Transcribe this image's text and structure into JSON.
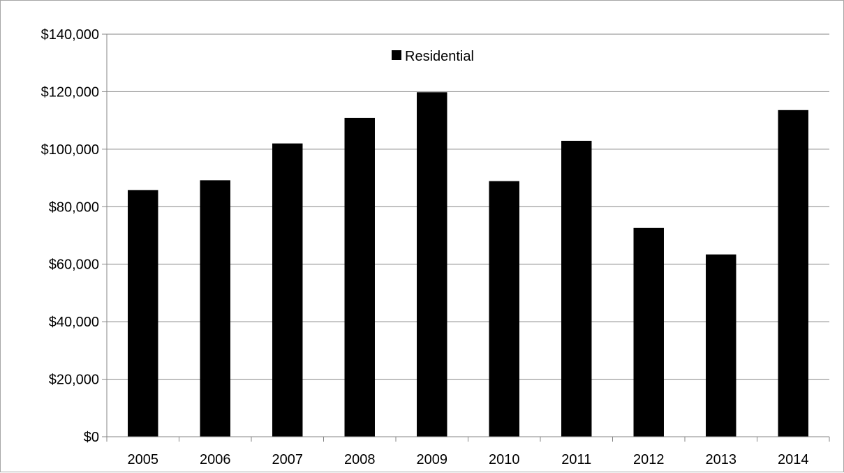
{
  "chart_data": {
    "type": "bar",
    "categories": [
      "2005",
      "2006",
      "2007",
      "2008",
      "2009",
      "2010",
      "2011",
      "2012",
      "2013",
      "2014"
    ],
    "series": [
      {
        "name": "Residential",
        "values": [
          85800,
          89200,
          102000,
          110900,
          119800,
          88900,
          102900,
          72600,
          63400,
          113600
        ]
      }
    ],
    "y_tick_labels": [
      "$0",
      "$20,000",
      "$40,000",
      "$60,000",
      "$80,000",
      "$100,000",
      "$120,000",
      "$140,000"
    ],
    "y_tick_values": [
      0,
      20000,
      40000,
      60000,
      80000,
      100000,
      120000,
      140000
    ],
    "ylim": [
      0,
      140000
    ],
    "grid": true,
    "legend_position": "top-center",
    "title": "",
    "xlabel": "",
    "ylabel": "",
    "colors": {
      "bar": "#000000",
      "gridline": "#868686",
      "axis": "#868686",
      "frame": "#a6a6a6"
    }
  }
}
